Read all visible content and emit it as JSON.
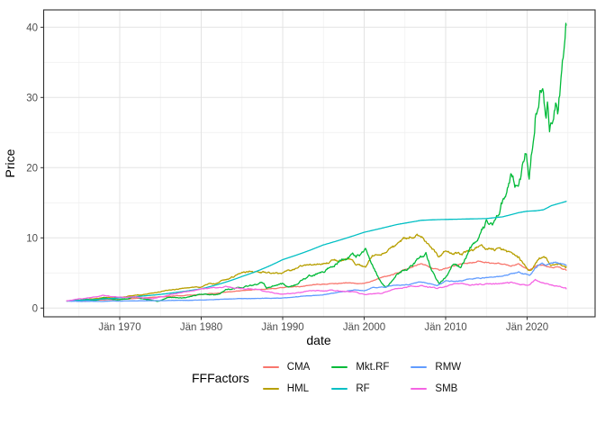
{
  "chart_data": {
    "type": "line",
    "title": "",
    "xlabel": "date",
    "ylabel": "Price",
    "legend_title": "FFFactors",
    "legend_position": "bottom",
    "grid": true,
    "x_domain": [
      1963.5,
      2024.8
    ],
    "y_domain": [
      -1.2,
      42.5
    ],
    "x_ticks": {
      "years": [
        1970,
        1980,
        1990,
        2000,
        2010,
        2020
      ],
      "labels": [
        "Jän 1970",
        "Jän 1980",
        "Jän 1990",
        "Jän 2000",
        "Jän 2010",
        "Jän 2020"
      ]
    },
    "x_minor_years": [
      1965,
      1975,
      1985,
      1995,
      2005,
      2015,
      2025
    ],
    "y_ticks": {
      "values": [
        0,
        10,
        20,
        30,
        40
      ],
      "labels": [
        "0",
        "10",
        "20",
        "30",
        "40"
      ]
    },
    "y_minor": [
      5,
      15,
      25,
      35
    ],
    "legend_order": [
      "CMA",
      "HML",
      "Mkt.RF",
      "RF",
      "RMW",
      "SMB"
    ],
    "series": [
      {
        "name": "CMA",
        "color": "#F8766D",
        "noise": 0.022,
        "points": [
          [
            1963.5,
            1.0
          ],
          [
            1966,
            1.1
          ],
          [
            1970,
            1.25
          ],
          [
            1975,
            1.6
          ],
          [
            1980,
            1.95
          ],
          [
            1985,
            2.5
          ],
          [
            1990,
            2.9
          ],
          [
            1995,
            3.4
          ],
          [
            1998,
            3.6
          ],
          [
            2000,
            3.5
          ],
          [
            2002,
            4.2
          ],
          [
            2004.7,
            5.4
          ],
          [
            2007,
            6.2
          ],
          [
            2008.5,
            5.6
          ],
          [
            2009.2,
            5.3
          ],
          [
            2011,
            6.0
          ],
          [
            2014,
            6.7
          ],
          [
            2016,
            6.3
          ],
          [
            2018,
            6.0
          ],
          [
            2019,
            6.2
          ],
          [
            2020.3,
            5.3
          ],
          [
            2021,
            6.0
          ],
          [
            2022,
            6.2
          ],
          [
            2023,
            5.7
          ],
          [
            2024,
            5.8
          ],
          [
            2024.8,
            5.4
          ]
        ]
      },
      {
        "name": "HML",
        "color": "#B79F00",
        "noise": 0.038,
        "points": [
          [
            1963.5,
            1.0
          ],
          [
            1966,
            1.2
          ],
          [
            1968,
            1.5
          ],
          [
            1970,
            1.55
          ],
          [
            1973,
            2.0
          ],
          [
            1975,
            2.3
          ],
          [
            1977,
            2.7
          ],
          [
            1980,
            3.1
          ],
          [
            1982,
            3.6
          ],
          [
            1984,
            4.5
          ],
          [
            1986,
            5.3
          ],
          [
            1988,
            5.0
          ],
          [
            1990,
            4.8
          ],
          [
            1993,
            6.2
          ],
          [
            1996,
            6.6
          ],
          [
            1998,
            6.9
          ],
          [
            1999,
            6.3
          ],
          [
            2000.2,
            5.8
          ],
          [
            2001,
            7.3
          ],
          [
            2003,
            8.3
          ],
          [
            2005,
            9.7
          ],
          [
            2006.5,
            10.5
          ],
          [
            2008,
            9.2
          ],
          [
            2009.2,
            7.2
          ],
          [
            2010,
            8.2
          ],
          [
            2012,
            7.8
          ],
          [
            2014,
            8.6
          ],
          [
            2016,
            8.3
          ],
          [
            2018,
            7.8
          ],
          [
            2019,
            7.0
          ],
          [
            2020.3,
            5.2
          ],
          [
            2021,
            6.3
          ],
          [
            2021.5,
            6.9
          ],
          [
            2022,
            7.1
          ],
          [
            2023,
            6.2
          ],
          [
            2024,
            6.3
          ],
          [
            2024.8,
            5.9
          ]
        ]
      },
      {
        "name": "Mkt.RF",
        "color": "#00BA38",
        "noise": 0.05,
        "points": [
          [
            1963.5,
            1.0
          ],
          [
            1965,
            1.15
          ],
          [
            1966,
            1.25
          ],
          [
            1966.8,
            1.1
          ],
          [
            1968,
            1.45
          ],
          [
            1970,
            1.15
          ],
          [
            1972,
            1.55
          ],
          [
            1974.7,
            0.95
          ],
          [
            1976,
            1.45
          ],
          [
            1978,
            1.5
          ],
          [
            1980,
            2.0
          ],
          [
            1982,
            1.95
          ],
          [
            1983,
            2.6
          ],
          [
            1987.7,
            3.6
          ],
          [
            1988,
            2.9
          ],
          [
            1990,
            3.4
          ],
          [
            1990.8,
            3.0
          ],
          [
            1993,
            4.4
          ],
          [
            1995,
            5.2
          ],
          [
            1997,
            6.8
          ],
          [
            1998.7,
            7.6
          ],
          [
            1999,
            7.2
          ],
          [
            2000.2,
            8.6
          ],
          [
            2001,
            6.5
          ],
          [
            2002.7,
            2.9
          ],
          [
            2004,
            4.8
          ],
          [
            2006,
            6.3
          ],
          [
            2007.6,
            7.8
          ],
          [
            2009.2,
            3.5
          ],
          [
            2011,
            6.5
          ],
          [
            2011.8,
            5.8
          ],
          [
            2013,
            8.5
          ],
          [
            2014,
            10.5
          ],
          [
            2015,
            12.3
          ],
          [
            2015.8,
            11.8
          ],
          [
            2016.5,
            13.2
          ],
          [
            2017,
            15.0
          ],
          [
            2018,
            18.3
          ],
          [
            2018.95,
            16.9
          ],
          [
            2019.9,
            22.5
          ],
          [
            2020.25,
            18.8
          ],
          [
            2021,
            28.0
          ],
          [
            2021.9,
            32.2
          ],
          [
            2022.3,
            27.5
          ],
          [
            2022.55,
            29.5
          ],
          [
            2022.75,
            24.3
          ],
          [
            2023.5,
            29.5
          ],
          [
            2023.8,
            28.0
          ],
          [
            2024.3,
            35.0
          ],
          [
            2024.6,
            37.5
          ],
          [
            2024.8,
            40.3
          ]
        ]
      },
      {
        "name": "RF",
        "color": "#00BFC4",
        "noise": 0,
        "points": [
          [
            1963.5,
            1.0
          ],
          [
            1970,
            1.45
          ],
          [
            1975,
            1.95
          ],
          [
            1980,
            2.75
          ],
          [
            1985,
            4.5
          ],
          [
            1990,
            6.9
          ],
          [
            1995,
            9.0
          ],
          [
            2000,
            10.8
          ],
          [
            2004,
            11.9
          ],
          [
            2007,
            12.5
          ],
          [
            2009,
            12.6
          ],
          [
            2015,
            12.75
          ],
          [
            2017,
            13.0
          ],
          [
            2019,
            13.6
          ],
          [
            2020,
            13.8
          ],
          [
            2021,
            13.85
          ],
          [
            2022,
            14.0
          ],
          [
            2023,
            14.6
          ],
          [
            2024.8,
            15.2
          ]
        ]
      },
      {
        "name": "RMW",
        "color": "#619CFF",
        "noise": 0.025,
        "points": [
          [
            1963.5,
            1.0
          ],
          [
            1966,
            0.95
          ],
          [
            1970,
            1.0
          ],
          [
            1975,
            1.05
          ],
          [
            1980,
            1.15
          ],
          [
            1985,
            1.35
          ],
          [
            1990,
            1.45
          ],
          [
            1993,
            1.7
          ],
          [
            1995,
            1.9
          ],
          [
            1997,
            2.3
          ],
          [
            1999,
            2.6
          ],
          [
            2000,
            2.5
          ],
          [
            2001,
            2.9
          ],
          [
            2003,
            3.1
          ],
          [
            2005,
            3.3
          ],
          [
            2007,
            3.7
          ],
          [
            2009,
            3.3
          ],
          [
            2010,
            3.8
          ],
          [
            2012,
            3.9
          ],
          [
            2014,
            4.2
          ],
          [
            2016,
            4.3
          ],
          [
            2017,
            4.6
          ],
          [
            2018,
            5.0
          ],
          [
            2019,
            5.1
          ],
          [
            2020.3,
            4.6
          ],
          [
            2021,
            5.7
          ],
          [
            2021.8,
            6.5
          ],
          [
            2022.3,
            6.1
          ],
          [
            2023,
            6.5
          ],
          [
            2023.5,
            6.7
          ],
          [
            2024,
            6.4
          ],
          [
            2024.8,
            6.1
          ]
        ]
      },
      {
        "name": "SMB",
        "color": "#F564E3",
        "noise": 0.035,
        "points": [
          [
            1963.5,
            1.0
          ],
          [
            1965,
            1.3
          ],
          [
            1968,
            1.8
          ],
          [
            1969.8,
            1.5
          ],
          [
            1972,
            1.6
          ],
          [
            1974,
            1.3
          ],
          [
            1976,
            1.9
          ],
          [
            1978,
            2.2
          ],
          [
            1980,
            2.7
          ],
          [
            1981.5,
            2.9
          ],
          [
            1983,
            3.1
          ],
          [
            1985,
            2.8
          ],
          [
            1987,
            2.6
          ],
          [
            1990,
            2.0
          ],
          [
            1993,
            2.4
          ],
          [
            1996,
            2.5
          ],
          [
            1999,
            2.3
          ],
          [
            2000.2,
            1.9
          ],
          [
            2002,
            2.1
          ],
          [
            2004,
            2.8
          ],
          [
            2007,
            3.2
          ],
          [
            2009,
            2.8
          ],
          [
            2011,
            3.4
          ],
          [
            2013,
            3.3
          ],
          [
            2015,
            3.4
          ],
          [
            2017,
            3.5
          ],
          [
            2018.5,
            3.6
          ],
          [
            2020.3,
            3.2
          ],
          [
            2021,
            4.0
          ],
          [
            2022,
            3.6
          ],
          [
            2023,
            3.3
          ],
          [
            2024,
            3.0
          ],
          [
            2024.8,
            2.75
          ]
        ]
      }
    ]
  }
}
